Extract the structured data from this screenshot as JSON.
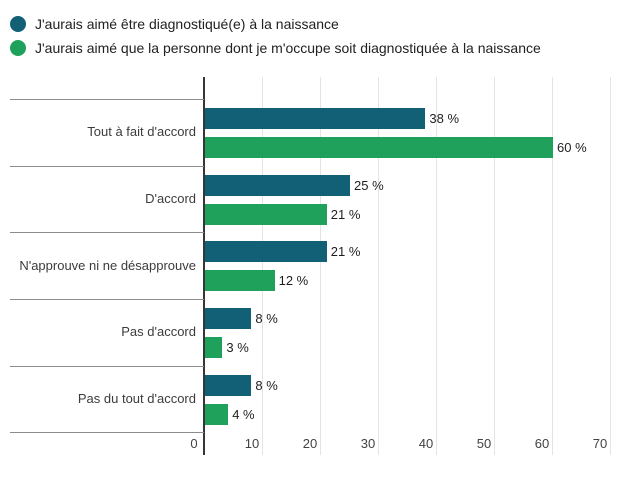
{
  "legend": {
    "items": [
      {
        "label": "J'aurais aimé être diagnostiqué(e) à la naissance",
        "color": "#116075"
      },
      {
        "label": "J'aurais aimé que la personne dont je m'occupe soit diagnostiquée à la naissance",
        "color": "#1fa15c"
      }
    ]
  },
  "chart_data": {
    "type": "bar",
    "orientation": "horizontal",
    "title": "",
    "xlabel": "",
    "ylabel": "",
    "categories": [
      "Tout à fait d'accord",
      "D'accord",
      "N'approuve ni ne désapprouve",
      "Pas d'accord",
      "Pas du tout d'accord"
    ],
    "series": [
      {
        "name": "J'aurais aimé être diagnostiqué(e) à la naissance",
        "color": "#116075",
        "values": [
          38,
          25,
          21,
          8,
          8
        ],
        "labels": [
          "38 %",
          "25 %",
          "21 %",
          "8 %",
          "8 %"
        ]
      },
      {
        "name": "J'aurais aimé que la personne dont je m'occupe soit diagnostiquée à la naissance",
        "color": "#1fa15c",
        "values": [
          60,
          21,
          12,
          3,
          4
        ],
        "labels": [
          "60 %",
          "21 %",
          "12 %",
          "3 %",
          "4 %"
        ]
      }
    ],
    "xlim": [
      0,
      70
    ],
    "xticks": [
      0,
      10,
      20,
      30,
      40,
      50,
      60,
      70
    ],
    "grid": true,
    "legend_position": "top",
    "value_label_format": "{value} %"
  }
}
